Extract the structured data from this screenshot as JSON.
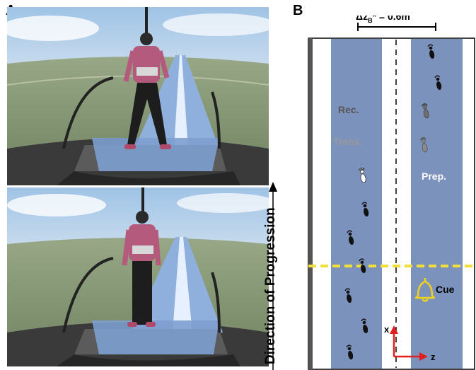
{
  "figure": {
    "panel_a_label": "A",
    "panel_b_label": "B",
    "direction_label": "Direction of Progression",
    "dz_label": "Δz",
    "dz_subscript": "B",
    "dz_value": "* = 0.6m",
    "rec_label": "Rec.",
    "trans_label": "Trans.",
    "prep_label": "Prep.",
    "cue_label": "Cue",
    "axis_x_label": "x",
    "axis_z_label": "z"
  },
  "colors": {
    "lane_blue": "#7b92bd",
    "cue_line": "#f2e03a",
    "bell": "#f0d21e",
    "footprint_black": "#111111",
    "footprint_gray": "#6f6f6f",
    "axis_red": "#e02020"
  },
  "icons": [
    "footprint-icon",
    "bell-icon",
    "arrow-icon"
  ]
}
